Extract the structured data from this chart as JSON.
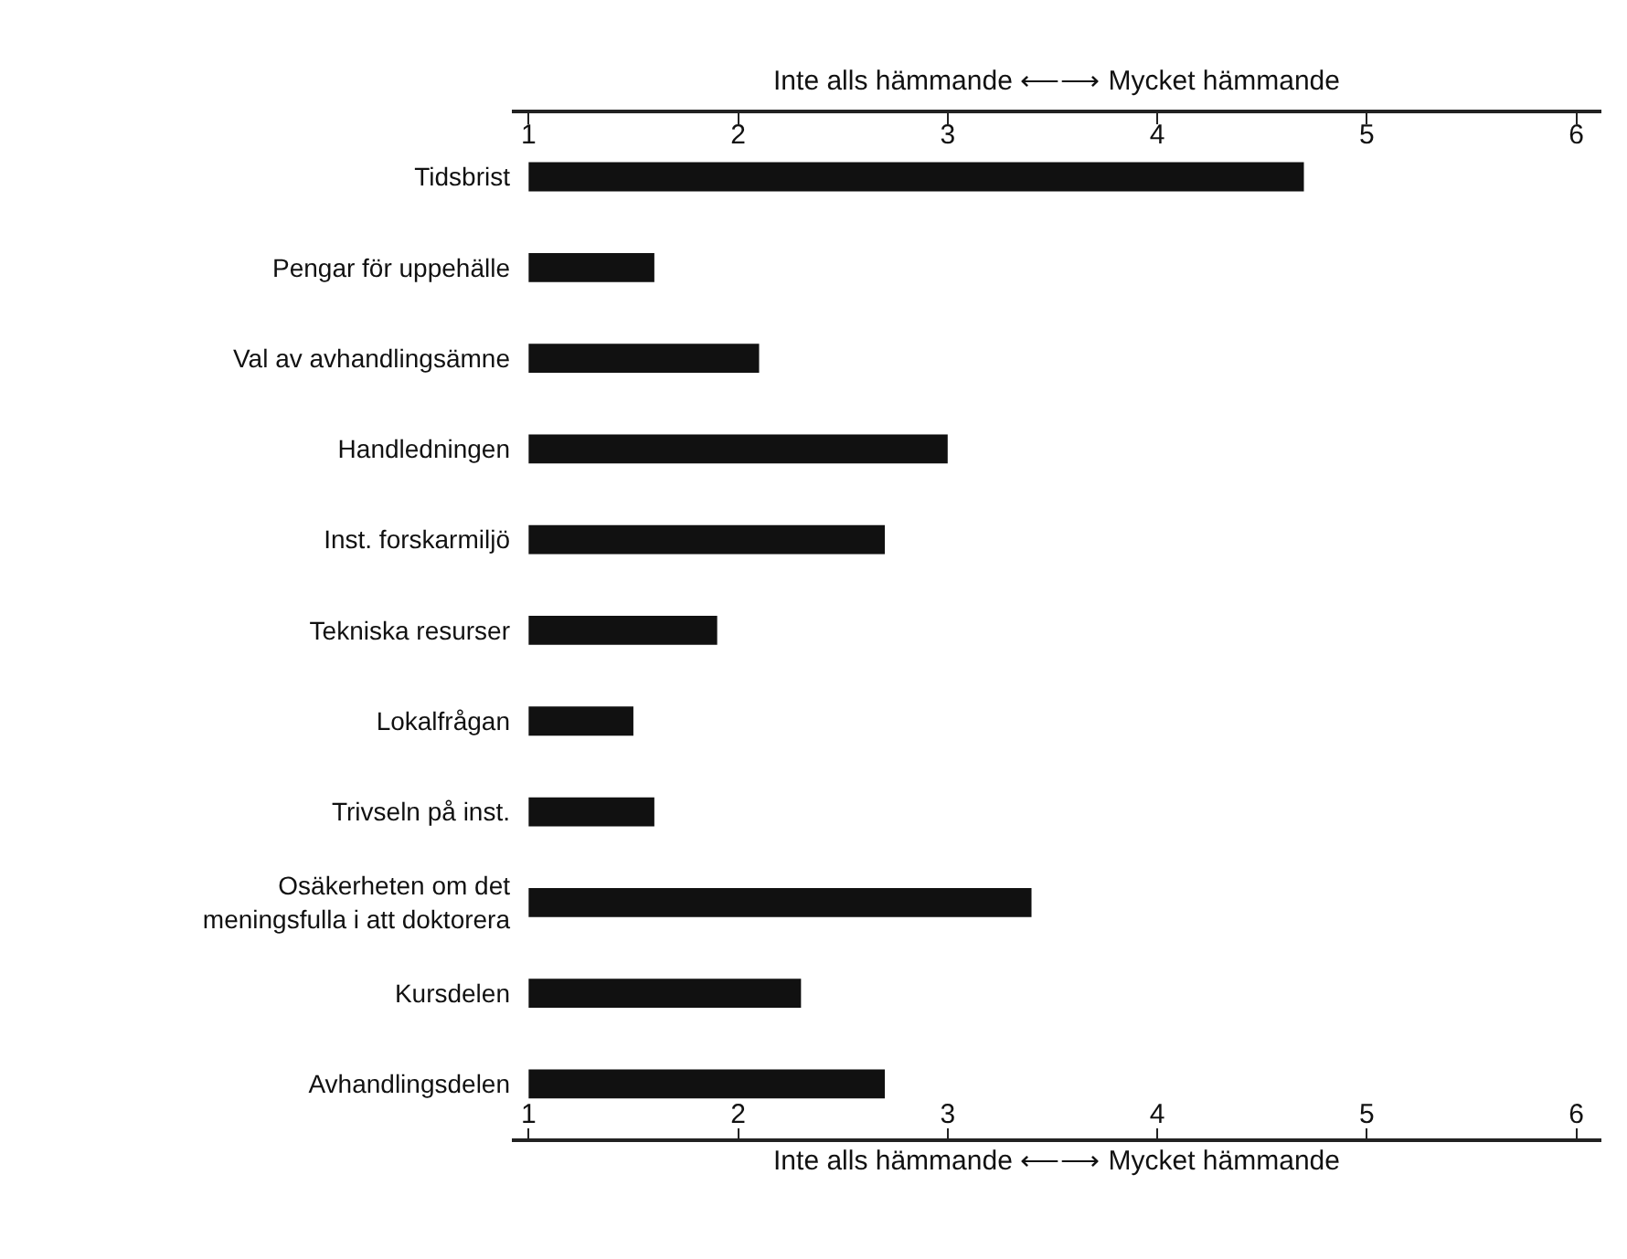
{
  "chart_data": {
    "type": "bar",
    "orientation": "horizontal",
    "categories": [
      "Tidsbrist",
      "Pengar för uppehälle",
      "Val av avhandlingsämne",
      "Handledningen",
      "Inst. forskarmiljö",
      "Tekniska resurser",
      "Lokalfrågan",
      "Trivseln på inst.",
      "Osäkerheten om det\nmeningsfulla i att doktorera",
      "Kursdelen",
      "Avhandlingsdelen"
    ],
    "values": [
      3.7,
      0.6,
      1.1,
      2.0,
      1.7,
      0.9,
      0.5,
      0.6,
      2.4,
      1.3,
      1.7
    ],
    "base": [
      1,
      1,
      1,
      1,
      1,
      1,
      1,
      1,
      1,
      1,
      1
    ],
    "color": "#111111",
    "xlabel": "Inte alls hämmande ⟵⟶ Mycket hämmande",
    "x2label": "Inte alls hämmande ⟵⟶ Mycket hämmande",
    "xlim": [
      0.92,
      6.12
    ],
    "xticks": [
      1,
      2,
      3,
      4,
      5,
      6
    ],
    "x2lim": [
      0.92,
      6.12
    ],
    "x2ticks": [
      1,
      2,
      3,
      4,
      5,
      6
    ]
  }
}
